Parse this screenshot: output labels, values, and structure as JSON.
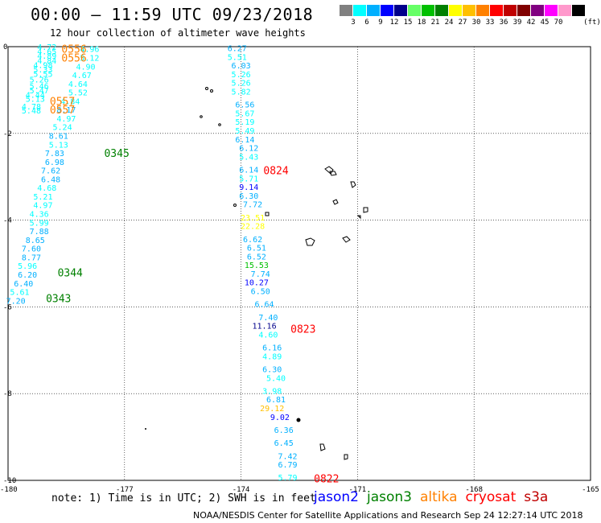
{
  "header": {
    "title": "00:00 – 11:59 UTC 09/23/2018",
    "subtitle": "12 hour collection of altimeter wave heights"
  },
  "legend": {
    "unit": "(ft)",
    "colors": [
      "#808080",
      "#00ffff",
      "#00b0ff",
      "#0000ff",
      "#00008b",
      "#66ff66",
      "#00c000",
      "#008000",
      "#ffff00",
      "#ffc000",
      "#ff8000",
      "#ff0000",
      "#c00000",
      "#800000",
      "#800080",
      "#ff00ff",
      "#ff99cc",
      "#000000"
    ],
    "labels": [
      "3",
      "6",
      "9",
      "12",
      "15",
      "18",
      "21",
      "24",
      "27",
      "30",
      "33",
      "36",
      "39",
      "42",
      "45",
      "70"
    ]
  },
  "axes": {
    "x_ticks": [
      "-180",
      "-177",
      "-174",
      "-171",
      "-168",
      "-165"
    ],
    "y_ticks": [
      "0",
      "-2",
      "-4",
      "-6",
      "-8",
      "-10"
    ]
  },
  "map_data": {
    "lon_range": [
      -180,
      -165
    ],
    "lat_range": [
      -10,
      0
    ],
    "passes": [
      {
        "time": "0556",
        "sat": "altika",
        "lon": -178.3,
        "lat": -0.05
      },
      {
        "time": "0556",
        "sat": "altika",
        "lon": -178.3,
        "lat": -0.25
      },
      {
        "time": "0557",
        "sat": "altika",
        "lon": -178.6,
        "lat": -1.25
      },
      {
        "time": "0557",
        "sat": "altika",
        "lon": -178.6,
        "lat": -1.45
      },
      {
        "time": "0345",
        "sat": "jason3",
        "lon": -177.2,
        "lat": -2.45
      },
      {
        "time": "0344",
        "sat": "jason3",
        "lon": -178.4,
        "lat": -5.2
      },
      {
        "time": "0343",
        "sat": "jason3",
        "lon": -178.7,
        "lat": -5.8
      },
      {
        "time": "0824",
        "sat": "cryosat",
        "lon": -173.1,
        "lat": -2.85
      },
      {
        "time": "0823",
        "sat": "cryosat",
        "lon": -172.4,
        "lat": -6.5
      },
      {
        "time": "0822",
        "sat": "cryosat",
        "lon": -171.8,
        "lat": -9.95
      }
    ],
    "tracks": [
      {
        "name": "track-a",
        "values": [
          {
            "v": "4.72",
            "lon": -179.0,
            "lat": 0.0,
            "c": "#00ffff"
          },
          {
            "v": "4.65",
            "lon": -179.0,
            "lat": -0.1,
            "c": "#00ffff"
          },
          {
            "v": "4.89",
            "lon": -179.0,
            "lat": -0.2,
            "c": "#00ffff"
          },
          {
            "v": "4.84",
            "lon": -179.0,
            "lat": -0.32,
            "c": "#00ffff"
          },
          {
            "v": "4.98",
            "lon": -179.1,
            "lat": -0.42,
            "c": "#00ffff"
          },
          {
            "v": "5.33",
            "lon": -179.1,
            "lat": -0.52,
            "c": "#00ffff"
          },
          {
            "v": "5.55",
            "lon": -179.1,
            "lat": -0.62,
            "c": "#00ffff"
          },
          {
            "v": "5.26",
            "lon": -179.2,
            "lat": -0.75,
            "c": "#00ffff"
          },
          {
            "v": "5.46",
            "lon": -179.2,
            "lat": -0.9,
            "c": "#00ffff"
          },
          {
            "v": "5.47",
            "lon": -179.2,
            "lat": -1.0,
            "c": "#00ffff"
          },
          {
            "v": "4.44",
            "lon": -179.3,
            "lat": -1.1,
            "c": "#00ffff"
          },
          {
            "v": "5.13",
            "lon": -179.3,
            "lat": -1.2,
            "c": "#00ffff"
          },
          {
            "v": "4.78",
            "lon": -179.4,
            "lat": -1.37,
            "c": "#00ffff"
          },
          {
            "v": "5.48",
            "lon": -179.4,
            "lat": -1.47,
            "c": "#00ffff"
          }
        ]
      },
      {
        "name": "track-b",
        "values": [
          {
            "v": "4.96",
            "lon": -177.9,
            "lat": -0.05,
            "c": "#00ffff"
          },
          {
            "v": "5.12",
            "lon": -177.9,
            "lat": -0.25,
            "c": "#00ffff"
          },
          {
            "v": "4.90",
            "lon": -178.0,
            "lat": -0.45,
            "c": "#00ffff"
          },
          {
            "v": "4.67",
            "lon": -178.1,
            "lat": -0.65,
            "c": "#00ffff"
          },
          {
            "v": "4.64",
            "lon": -178.2,
            "lat": -0.85,
            "c": "#00ffff"
          },
          {
            "v": "5.52",
            "lon": -178.2,
            "lat": -1.05,
            "c": "#00ffff"
          },
          {
            "v": "4.84",
            "lon": -178.4,
            "lat": -1.25,
            "c": "#00ffff"
          },
          {
            "v": "8.17",
            "lon": -178.5,
            "lat": -1.45,
            "c": "#00b0ff"
          },
          {
            "v": "4.97",
            "lon": -178.5,
            "lat": -1.65,
            "c": "#00ffff"
          },
          {
            "v": "5.24",
            "lon": -178.6,
            "lat": -1.85,
            "c": "#00ffff"
          },
          {
            "v": "8.61",
            "lon": -178.7,
            "lat": -2.05,
            "c": "#00b0ff"
          },
          {
            "v": "5.13",
            "lon": -178.7,
            "lat": -2.25,
            "c": "#00ffff"
          },
          {
            "v": "7.83",
            "lon": -178.8,
            "lat": -2.45,
            "c": "#00b0ff"
          },
          {
            "v": "6.98",
            "lon": -178.8,
            "lat": -2.65,
            "c": "#00b0ff"
          },
          {
            "v": "7.62",
            "lon": -178.9,
            "lat": -2.85,
            "c": "#00b0ff"
          },
          {
            "v": "6.48",
            "lon": -178.9,
            "lat": -3.05,
            "c": "#00b0ff"
          },
          {
            "v": "4.68",
            "lon": -179.0,
            "lat": -3.25,
            "c": "#00ffff"
          },
          {
            "v": "5.21",
            "lon": -179.1,
            "lat": -3.45,
            "c": "#00ffff"
          },
          {
            "v": "4.97",
            "lon": -179.1,
            "lat": -3.65,
            "c": "#00ffff"
          },
          {
            "v": "4.36",
            "lon": -179.2,
            "lat": -3.85,
            "c": "#00ffff"
          },
          {
            "v": "5.99",
            "lon": -179.2,
            "lat": -4.05,
            "c": "#00ffff"
          },
          {
            "v": "7.88",
            "lon": -179.2,
            "lat": -4.25,
            "c": "#00b0ff"
          },
          {
            "v": "8.65",
            "lon": -179.3,
            "lat": -4.45,
            "c": "#00b0ff"
          },
          {
            "v": "7.60",
            "lon": -179.4,
            "lat": -4.65,
            "c": "#00b0ff"
          },
          {
            "v": "8.77",
            "lon": -179.4,
            "lat": -4.85,
            "c": "#00b0ff"
          },
          {
            "v": "5.96",
            "lon": -179.5,
            "lat": -5.05,
            "c": "#00ffff"
          },
          {
            "v": "6.20",
            "lon": -179.5,
            "lat": -5.25,
            "c": "#00b0ff"
          },
          {
            "v": "6.40",
            "lon": -179.6,
            "lat": -5.45,
            "c": "#00b0ff"
          },
          {
            "v": "5.61",
            "lon": -179.7,
            "lat": -5.65,
            "c": "#00ffff"
          },
          {
            "v": "7.20",
            "lon": -179.8,
            "lat": -5.85,
            "c": "#00b0ff"
          }
        ]
      },
      {
        "name": "track-c",
        "values": [
          {
            "v": "6.27",
            "lon": -174.1,
            "lat": -0.03,
            "c": "#00b0ff"
          },
          {
            "v": "5.51",
            "lon": -174.1,
            "lat": -0.23,
            "c": "#00ffff"
          },
          {
            "v": "6.03",
            "lon": -174.0,
            "lat": -0.43,
            "c": "#00b0ff"
          },
          {
            "v": "5.26",
            "lon": -174.0,
            "lat": -0.63,
            "c": "#00ffff"
          },
          {
            "v": "5.26",
            "lon": -174.0,
            "lat": -0.83,
            "c": "#00ffff"
          },
          {
            "v": "5.82",
            "lon": -174.0,
            "lat": -1.03,
            "c": "#00ffff"
          },
          {
            "v": "6.56",
            "lon": -173.9,
            "lat": -1.33,
            "c": "#00b0ff"
          },
          {
            "v": "5.67",
            "lon": -173.9,
            "lat": -1.53,
            "c": "#00ffff"
          },
          {
            "v": "5.19",
            "lon": -173.9,
            "lat": -1.73,
            "c": "#00ffff"
          },
          {
            "v": "5.49",
            "lon": -173.9,
            "lat": -1.93,
            "c": "#00ffff"
          },
          {
            "v": "6.14",
            "lon": -173.9,
            "lat": -2.13,
            "c": "#00b0ff"
          },
          {
            "v": "6.12",
            "lon": -173.8,
            "lat": -2.33,
            "c": "#00b0ff"
          },
          {
            "v": "5.43",
            "lon": -173.8,
            "lat": -2.53,
            "c": "#00ffff"
          },
          {
            "v": "6.14",
            "lon": -173.8,
            "lat": -2.83,
            "c": "#00b0ff"
          },
          {
            "v": "5.71",
            "lon": -173.8,
            "lat": -3.03,
            "c": "#00ffff"
          },
          {
            "v": "9.14",
            "lon": -173.8,
            "lat": -3.23,
            "c": "#0000ff"
          },
          {
            "v": "6.30",
            "lon": -173.8,
            "lat": -3.43,
            "c": "#00b0ff"
          },
          {
            "v": "7.72",
            "lon": -173.7,
            "lat": -3.63,
            "c": "#00b0ff"
          },
          {
            "v": "23.51",
            "lon": -173.7,
            "lat": -3.93,
            "c": "#ffff00"
          },
          {
            "v": "22.28",
            "lon": -173.7,
            "lat": -4.13,
            "c": "#ffff00"
          },
          {
            "v": "6.62",
            "lon": -173.7,
            "lat": -4.43,
            "c": "#00b0ff"
          },
          {
            "v": "6.51",
            "lon": -173.6,
            "lat": -4.63,
            "c": "#00b0ff"
          },
          {
            "v": "6.52",
            "lon": -173.6,
            "lat": -4.83,
            "c": "#00b0ff"
          },
          {
            "v": "15.53",
            "lon": -173.6,
            "lat": -5.03,
            "c": "#00c000"
          },
          {
            "v": "7.74",
            "lon": -173.5,
            "lat": -5.23,
            "c": "#00b0ff"
          },
          {
            "v": "10.27",
            "lon": -173.6,
            "lat": -5.43,
            "c": "#0000ff"
          },
          {
            "v": "6.50",
            "lon": -173.5,
            "lat": -5.63,
            "c": "#00b0ff"
          },
          {
            "v": "6.64",
            "lon": -173.4,
            "lat": -5.93,
            "c": "#00b0ff"
          },
          {
            "v": "7.40",
            "lon": -173.3,
            "lat": -6.23,
            "c": "#00b0ff"
          },
          {
            "v": "11.16",
            "lon": -173.4,
            "lat": -6.43,
            "c": "#00008b"
          },
          {
            "v": "4.60",
            "lon": -173.3,
            "lat": -6.63,
            "c": "#00ffff"
          },
          {
            "v": "6.16",
            "lon": -173.2,
            "lat": -6.93,
            "c": "#00b0ff"
          },
          {
            "v": "4.89",
            "lon": -173.2,
            "lat": -7.13,
            "c": "#00ffff"
          },
          {
            "v": "6.30",
            "lon": -173.2,
            "lat": -7.43,
            "c": "#00b0ff"
          },
          {
            "v": "5.40",
            "lon": -173.1,
            "lat": -7.63,
            "c": "#00ffff"
          },
          {
            "v": "3.98",
            "lon": -173.2,
            "lat": -7.93,
            "c": "#00ffff"
          },
          {
            "v": "6.81",
            "lon": -173.1,
            "lat": -8.13,
            "c": "#00b0ff"
          },
          {
            "v": "29.12",
            "lon": -173.2,
            "lat": -8.33,
            "c": "#ffc000"
          },
          {
            "v": "9.02",
            "lon": -173.0,
            "lat": -8.53,
            "c": "#0000ff"
          },
          {
            "v": "6.36",
            "lon": -172.9,
            "lat": -8.83,
            "c": "#00b0ff"
          },
          {
            "v": "6.45",
            "lon": -172.9,
            "lat": -9.13,
            "c": "#00b0ff"
          },
          {
            "v": "7.42",
            "lon": -172.8,
            "lat": -9.43,
            "c": "#00b0ff"
          },
          {
            "v": "6.79",
            "lon": -172.8,
            "lat": -9.63,
            "c": "#00b0ff"
          },
          {
            "v": "5.79",
            "lon": -172.8,
            "lat": -9.93,
            "c": "#00ffff"
          }
        ]
      }
    ]
  },
  "notes": {
    "note": "note: 1) Time is in UTC; 2) SWH is in feet",
    "satellites": [
      {
        "name": "jason2",
        "color": "#0000ff"
      },
      {
        "name": "jason3",
        "color": "#008000"
      },
      {
        "name": "altika",
        "color": "#ff8000"
      },
      {
        "name": "cryosat",
        "color": "#ff0000"
      },
      {
        "name": "s3a",
        "color": "#c00000"
      }
    ],
    "footer": "NOAA/NESDIS Center for Satellite Applications and Research    Sep 24 12:27:14 UTC 2018"
  }
}
